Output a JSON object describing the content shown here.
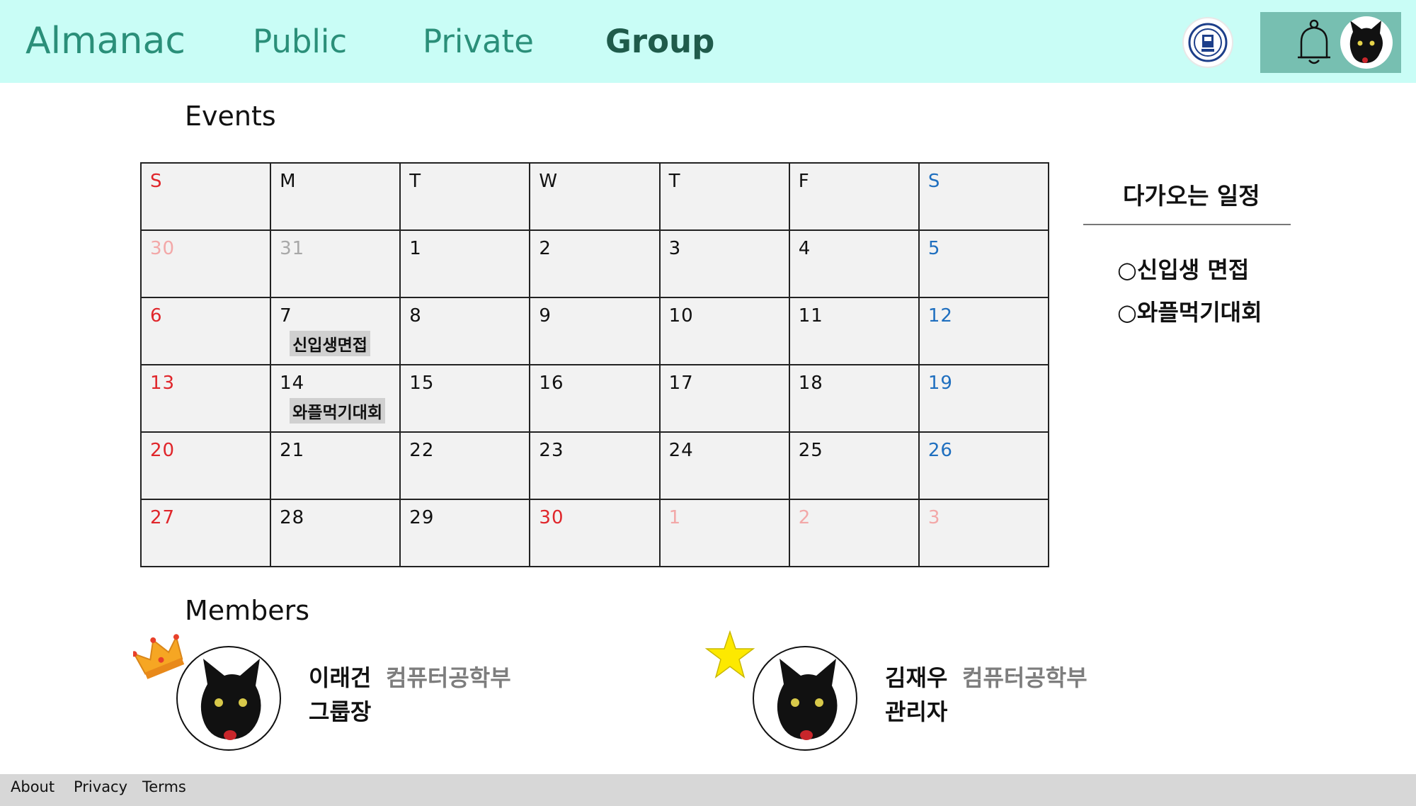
{
  "header": {
    "brand": "Almanac",
    "nav": {
      "public": "Public",
      "private": "Private",
      "group": "Group"
    },
    "active_nav": "Group",
    "colors": {
      "header_bg": "#c9fdf6",
      "brand": "#2a8f79",
      "user_box": "#77bfb1"
    }
  },
  "events": {
    "title": "Events",
    "weekdays": [
      "S",
      "M",
      "T",
      "W",
      "T",
      "F",
      "S"
    ],
    "weeks": [
      [
        {
          "d": "30",
          "t": "faded-sun"
        },
        {
          "d": "31",
          "t": "faded-wk"
        },
        {
          "d": "1",
          "t": "wk"
        },
        {
          "d": "2",
          "t": "wk"
        },
        {
          "d": "3",
          "t": "wk"
        },
        {
          "d": "4",
          "t": "wk"
        },
        {
          "d": "5",
          "t": "sat"
        }
      ],
      [
        {
          "d": "6",
          "t": "sun"
        },
        {
          "d": "7",
          "t": "wk",
          "e": "신입생면접"
        },
        {
          "d": "8",
          "t": "wk"
        },
        {
          "d": "9",
          "t": "wk"
        },
        {
          "d": "10",
          "t": "wk"
        },
        {
          "d": "11",
          "t": "wk"
        },
        {
          "d": "12",
          "t": "sat"
        }
      ],
      [
        {
          "d": "13",
          "t": "sun"
        },
        {
          "d": "14",
          "t": "wk",
          "e": "와플먹기대회"
        },
        {
          "d": "15",
          "t": "wk"
        },
        {
          "d": "16",
          "t": "wk"
        },
        {
          "d": "17",
          "t": "wk"
        },
        {
          "d": "18",
          "t": "wk"
        },
        {
          "d": "19",
          "t": "sat"
        }
      ],
      [
        {
          "d": "20",
          "t": "sun"
        },
        {
          "d": "21",
          "t": "wk"
        },
        {
          "d": "22",
          "t": "wk"
        },
        {
          "d": "23",
          "t": "wk"
        },
        {
          "d": "24",
          "t": "wk"
        },
        {
          "d": "25",
          "t": "wk"
        },
        {
          "d": "26",
          "t": "sat"
        }
      ],
      [
        {
          "d": "27",
          "t": "sun"
        },
        {
          "d": "28",
          "t": "wk"
        },
        {
          "d": "29",
          "t": "wk"
        },
        {
          "d": "30",
          "t": "sun"
        },
        {
          "d": "1",
          "t": "faded-sun"
        },
        {
          "d": "2",
          "t": "faded-sun"
        },
        {
          "d": "3",
          "t": "faded-sun"
        }
      ]
    ],
    "colors": {
      "sunday": "#e0262b",
      "saturday": "#1f6fbf",
      "cell_bg": "#f2f2f2"
    }
  },
  "upcoming": {
    "title": "다가오는 일정",
    "items": [
      "○신입생 면접",
      "○와플먹기대회"
    ]
  },
  "members": {
    "title": "Members",
    "list": [
      {
        "name": "이래건",
        "dept": "컴퓨터공학부",
        "role": "그룹장",
        "badge": "crown-icon"
      },
      {
        "name": "김재우",
        "dept": "컴퓨터공학부",
        "role": "관리자",
        "badge": "star-icon"
      }
    ]
  },
  "footer": {
    "about": "About",
    "privacy": "Privacy",
    "terms": "Terms"
  }
}
